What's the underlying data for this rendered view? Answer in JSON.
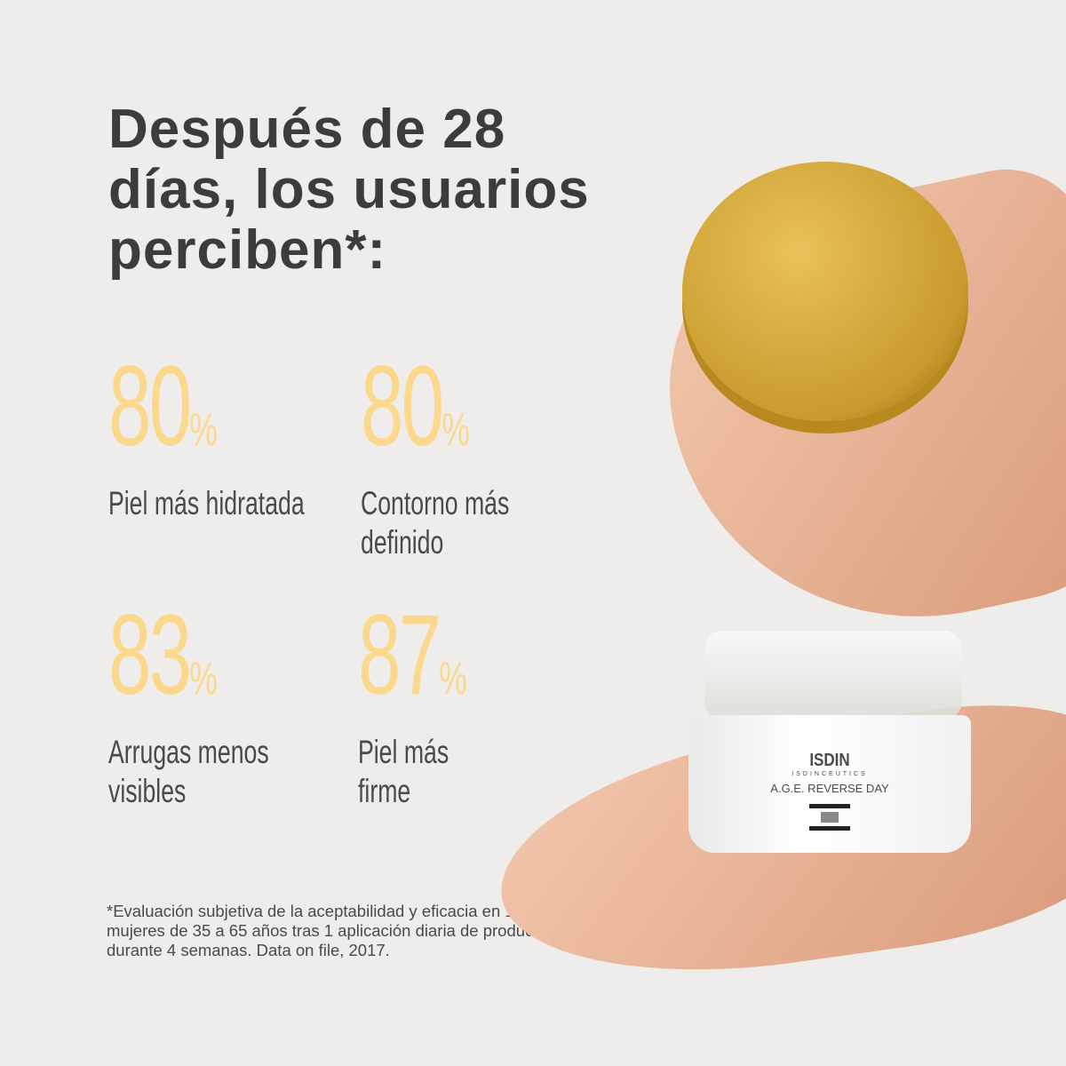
{
  "headline": {
    "lines": [
      "Después de 28",
      "días, los usuarios",
      "perciben*:"
    ]
  },
  "stats": [
    {
      "value": "80",
      "unit": "%",
      "label_lines": [
        "Piel más hidratada"
      ]
    },
    {
      "value": "80",
      "unit": "%",
      "label_lines": [
        "Contorno más",
        "definido"
      ]
    },
    {
      "value": "83",
      "unit": "%",
      "label_lines": [
        "Arrugas menos",
        "visibles"
      ]
    },
    {
      "value": "87",
      "unit": "%",
      "label_lines": [
        "Piel más",
        "firme"
      ]
    }
  ],
  "footnote": {
    "lines": [
      "*Evaluación subjetiva de la aceptabilidad y eficacia en 100",
      "mujeres de 35 a 65 años tras 1 aplicación diaria de producto",
      "durante 4 semanas. Data on file, 2017."
    ]
  },
  "product": {
    "brand": "ISDIN",
    "sub_brand": "ISDINCEUTICS",
    "name": "A.G.E. REVERSE DAY"
  },
  "colors": {
    "background": "#eeedeb",
    "accent": "#fcd88c",
    "text": "#3c3c3c",
    "lid_gold": "#d4a632"
  }
}
